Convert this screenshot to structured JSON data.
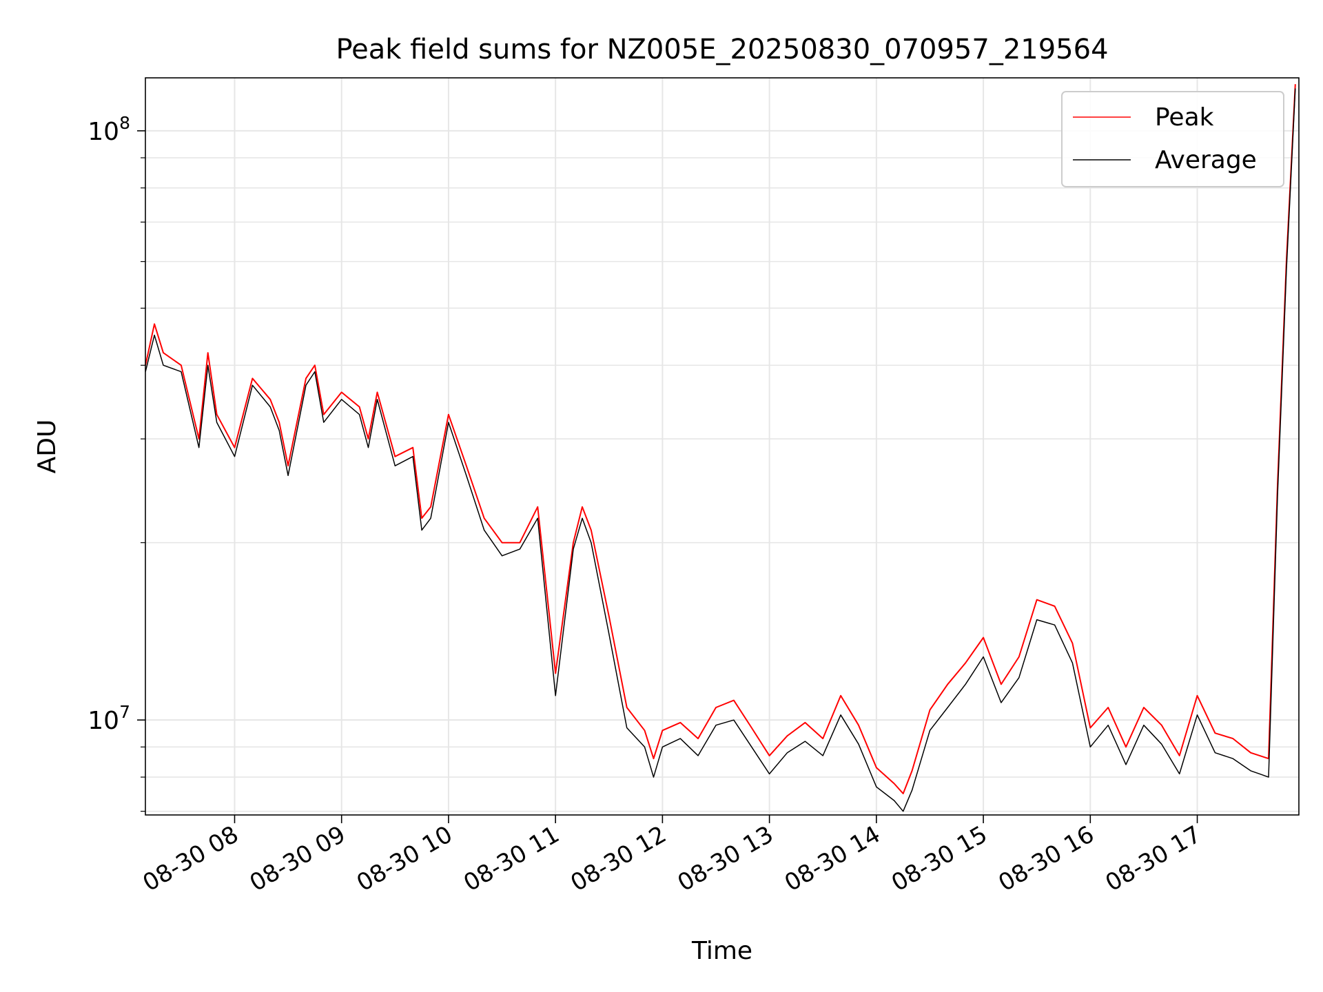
{
  "chart_data": {
    "type": "line",
    "title": "Peak field sums for NZ005E_20250830_070957_219564",
    "xlabel": "Time",
    "ylabel": "ADU",
    "yscale": "log",
    "grid": true,
    "legend_position": "top-right",
    "xlim": [
      "2025-08-30 07:09:57",
      "2025-08-30 17:57"
    ],
    "ylim": [
      6900000,
      123000000
    ],
    "x_ticks": [
      "08-30 08",
      "08-30 09",
      "08-30 10",
      "08-30 11",
      "08-30 12",
      "08-30 13",
      "08-30 14",
      "08-30 15",
      "08-30 16",
      "08-30 17"
    ],
    "y_ticks": [
      {
        "base": "10",
        "exp": "7"
      },
      {
        "base": "10",
        "exp": "8"
      }
    ],
    "colors": {
      "Peak": "#ff0000",
      "Average": "#000000"
    },
    "x": [
      "07:10",
      "07:15",
      "07:20",
      "07:30",
      "07:40",
      "07:45",
      "07:50",
      "08:00",
      "08:10",
      "08:20",
      "08:25",
      "08:30",
      "08:40",
      "08:45",
      "08:50",
      "09:00",
      "09:10",
      "09:15",
      "09:20",
      "09:30",
      "09:40",
      "09:45",
      "09:50",
      "10:00",
      "10:10",
      "10:20",
      "10:30",
      "10:40",
      "10:50",
      "11:00",
      "11:10",
      "11:15",
      "11:20",
      "11:30",
      "11:40",
      "11:50",
      "11:55",
      "12:00",
      "12:10",
      "12:20",
      "12:30",
      "12:40",
      "12:50",
      "13:00",
      "13:10",
      "13:20",
      "13:30",
      "13:40",
      "13:50",
      "14:00",
      "14:10",
      "14:15",
      "14:20",
      "14:30",
      "14:40",
      "14:50",
      "15:00",
      "15:10",
      "15:20",
      "15:30",
      "15:40",
      "15:50",
      "16:00",
      "16:10",
      "16:20",
      "16:30",
      "16:40",
      "16:50",
      "17:00",
      "17:10",
      "17:20",
      "17:30",
      "17:35",
      "17:40",
      "17:45",
      "17:50",
      "17:55"
    ],
    "series": [
      {
        "name": "Peak",
        "values": [
          40000000,
          47000000,
          42000000,
          40000000,
          30000000,
          42000000,
          33000000,
          29000000,
          38000000,
          35000000,
          32000000,
          27000000,
          38000000,
          40000000,
          33000000,
          36000000,
          34000000,
          30000000,
          36000000,
          28000000,
          29000000,
          22000000,
          23000000,
          33000000,
          27000000,
          22000000,
          20000000,
          20000000,
          23000000,
          12000000,
          20000000,
          23000000,
          21000000,
          15000000,
          10500000,
          9600000,
          8600000,
          9600000,
          9900000,
          9300000,
          10500000,
          10800000,
          9700000,
          8700000,
          9400000,
          9900000,
          9300000,
          11000000,
          9800000,
          8300000,
          7800000,
          7500000,
          8200000,
          10400000,
          11500000,
          12500000,
          13800000,
          11500000,
          12800000,
          16000000,
          15600000,
          13500000,
          9700000,
          10500000,
          9000000,
          10500000,
          9800000,
          8700000,
          11000000,
          9500000,
          9300000,
          8800000,
          8700000,
          8600000,
          25000000,
          60000000,
          120000000
        ]
      },
      {
        "name": "Average",
        "values": [
          39000000,
          45000000,
          40000000,
          39000000,
          29000000,
          40000000,
          32000000,
          28000000,
          37000000,
          34000000,
          31000000,
          26000000,
          37000000,
          39000000,
          32000000,
          35000000,
          33000000,
          29000000,
          35000000,
          27000000,
          28000000,
          21000000,
          22000000,
          32000000,
          26000000,
          21000000,
          19000000,
          19500000,
          22000000,
          11000000,
          19500000,
          22000000,
          20000000,
          14000000,
          9700000,
          9000000,
          8000000,
          9000000,
          9300000,
          8700000,
          9800000,
          10000000,
          9000000,
          8100000,
          8800000,
          9200000,
          8700000,
          10200000,
          9100000,
          7700000,
          7300000,
          7000000,
          7600000,
          9600000,
          10500000,
          11500000,
          12800000,
          10700000,
          11800000,
          14800000,
          14500000,
          12500000,
          9000000,
          9800000,
          8400000,
          9800000,
          9100000,
          8100000,
          10200000,
          8800000,
          8600000,
          8200000,
          8100000,
          8000000,
          24000000,
          58000000,
          118000000
        ]
      }
    ]
  }
}
